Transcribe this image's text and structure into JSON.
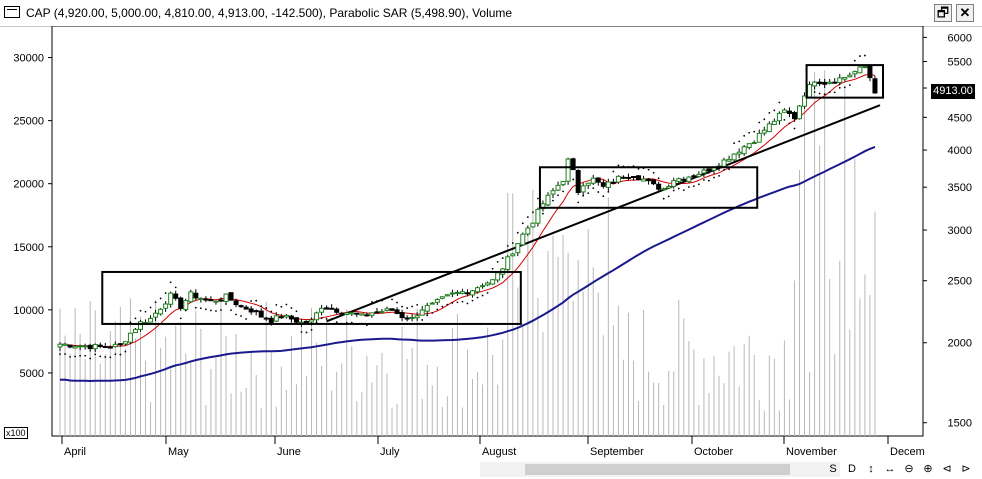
{
  "window": {
    "title": "CAP (4,920.00, 5,000.00, 4,810.00, 4,913.00, -142.500), Parabolic SAR (5,498.90), Volume",
    "restore_label": "🗗",
    "close_label": "✕"
  },
  "chart_data": {
    "type": "candlestick",
    "x_tick_labels": [
      "April",
      "May",
      "June",
      "July",
      "August",
      "September",
      "October",
      "November",
      "Decem"
    ],
    "left_axis": {
      "ticks": [
        5000,
        10000,
        15000,
        20000,
        25000,
        30000
      ],
      "range": [
        0,
        32500
      ],
      "multiplier_label": "x100",
      "series": "Volume"
    },
    "right_axis": {
      "scale": "log",
      "ticks": [
        1500,
        2000,
        2500,
        3000,
        3500,
        4000,
        4500,
        5000,
        5500,
        6000
      ],
      "range": [
        1430,
        6250
      ]
    },
    "last_price": {
      "value": 4913.0,
      "label": "4913.00"
    },
    "ohlc_last": {
      "open": 4920.0,
      "high": 5000.0,
      "low": 4810.0,
      "close": 4913.0,
      "change": -142.5
    },
    "parabolic_sar_last": 5498.9,
    "price_path": [
      [
        0,
        1990
      ],
      [
        4,
        1980
      ],
      [
        8,
        1970
      ],
      [
        12,
        1980
      ],
      [
        14,
        2070
      ],
      [
        16,
        2150
      ],
      [
        18,
        2180
      ],
      [
        20,
        2270
      ],
      [
        22,
        2370
      ],
      [
        24,
        2280
      ],
      [
        26,
        2380
      ],
      [
        28,
        2350
      ],
      [
        30,
        2320
      ],
      [
        33,
        2360
      ],
      [
        36,
        2280
      ],
      [
        38,
        2250
      ],
      [
        40,
        2200
      ],
      [
        42,
        2170
      ],
      [
        44,
        2200
      ],
      [
        46,
        2180
      ],
      [
        48,
        2150
      ],
      [
        50,
        2160
      ],
      [
        52,
        2280
      ],
      [
        54,
        2260
      ],
      [
        56,
        2240
      ],
      [
        58,
        2220
      ],
      [
        60,
        2200
      ],
      [
        62,
        2230
      ],
      [
        64,
        2240
      ],
      [
        66,
        2250
      ],
      [
        68,
        2200
      ],
      [
        70,
        2180
      ],
      [
        72,
        2260
      ],
      [
        74,
        2290
      ],
      [
        76,
        2340
      ],
      [
        78,
        2380
      ],
      [
        80,
        2400
      ],
      [
        82,
        2420
      ],
      [
        84,
        2470
      ],
      [
        86,
        2500
      ],
      [
        88,
        2620
      ],
      [
        90,
        2780
      ],
      [
        92,
        2950
      ],
      [
        94,
        3100
      ],
      [
        96,
        3300
      ],
      [
        98,
        3450
      ],
      [
        100,
        3600
      ],
      [
        101,
        3850
      ],
      [
        102,
        3700
      ],
      [
        103,
        3450
      ],
      [
        104,
        3550
      ],
      [
        106,
        3600
      ],
      [
        108,
        3500
      ],
      [
        110,
        3580
      ],
      [
        112,
        3650
      ],
      [
        114,
        3660
      ],
      [
        116,
        3600
      ],
      [
        118,
        3520
      ],
      [
        120,
        3480
      ],
      [
        122,
        3600
      ],
      [
        124,
        3620
      ],
      [
        126,
        3660
      ],
      [
        128,
        3700
      ],
      [
        130,
        3780
      ],
      [
        132,
        3850
      ],
      [
        134,
        3950
      ],
      [
        136,
        4050
      ],
      [
        138,
        4150
      ],
      [
        140,
        4300
      ],
      [
        142,
        4450
      ],
      [
        144,
        4600
      ],
      [
        146,
        4500
      ],
      [
        148,
        4900
      ],
      [
        150,
        5150
      ],
      [
        152,
        5100
      ],
      [
        154,
        5150
      ],
      [
        156,
        5200
      ],
      [
        158,
        5300
      ],
      [
        160,
        5400
      ],
      [
        161,
        5200
      ],
      [
        162,
        4913
      ]
    ],
    "sma_short_color": "#d40000",
    "sma_long_color": "#1a1a8c",
    "up_candle_color": "#208020",
    "down_candle_color": "#000000",
    "boxes": [
      {
        "from_bar": 9,
        "to_bar": 91,
        "low": 2140,
        "high": 2580
      },
      {
        "from_bar": 96,
        "to_bar": 138,
        "low": 3250,
        "high": 3760
      },
      {
        "from_bar": 149,
        "to_bar": 163,
        "low": 4830,
        "high": 5430
      }
    ]
  },
  "navigation": {
    "buttons": [
      "S",
      "D",
      "↕",
      "↔",
      "⊖",
      "⊕",
      "⊲",
      "⊳"
    ]
  }
}
